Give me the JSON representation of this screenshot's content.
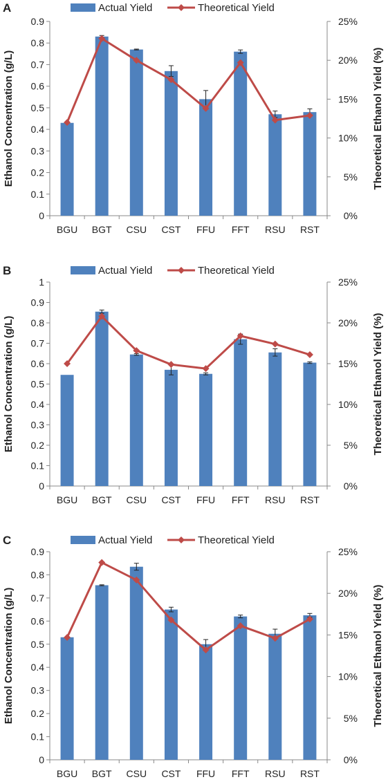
{
  "colors": {
    "bar": "#4f81bd",
    "line": "#be4b48",
    "error": "#222222"
  },
  "chart_data": [
    {
      "type": "bar",
      "panel_label": "A",
      "categories": [
        "BGU",
        "BGT",
        "CSU",
        "CST",
        "FFU",
        "FFT",
        "RSU",
        "RST"
      ],
      "series": [
        {
          "name": "Actual Yield",
          "type": "bar",
          "axis": "left",
          "values": [
            0.43,
            0.83,
            0.77,
            0.67,
            0.54,
            0.76,
            0.47,
            0.48
          ],
          "errors": [
            0.0,
            0.005,
            0.002,
            0.025,
            0.04,
            0.008,
            0.015,
            0.015
          ]
        },
        {
          "name": "Theoretical Yield",
          "type": "line",
          "axis": "right",
          "values": [
            12.0,
            22.8,
            20.0,
            17.5,
            13.8,
            19.7,
            12.3,
            12.9
          ]
        }
      ],
      "ylabel": "Ethanol Concentration (g/L)",
      "y2label": "Theoretical Ethanol Yield (%)",
      "ylim": [
        0,
        0.9
      ],
      "yticks": [
        "0",
        "0.1",
        "0.2",
        "0.3",
        "0.4",
        "0.5",
        "0.6",
        "0.7",
        "0.8",
        "0.9"
      ],
      "y2lim": [
        0,
        25
      ],
      "y2ticks": [
        "0%",
        "5%",
        "10%",
        "15%",
        "20%",
        "25%"
      ],
      "legend": "top",
      "grid": false
    },
    {
      "type": "bar",
      "panel_label": "B",
      "categories": [
        "BGU",
        "BGT",
        "CSU",
        "CST",
        "FFU",
        "FFT",
        "RSU",
        "RST"
      ],
      "series": [
        {
          "name": "Actual Yield",
          "type": "bar",
          "axis": "left",
          "values": [
            0.545,
            0.855,
            0.645,
            0.57,
            0.55,
            0.72,
            0.655,
            0.605
          ],
          "errors": [
            0.0,
            0.008,
            0.004,
            0.025,
            0.005,
            0.025,
            0.018,
            0.004
          ]
        },
        {
          "name": "Theoretical Yield",
          "type": "line",
          "axis": "right",
          "values": [
            15.0,
            20.8,
            16.6,
            14.9,
            14.4,
            18.4,
            17.4,
            16.1
          ]
        }
      ],
      "ylabel": "Ethanol Concentration (g/L)",
      "y2label": "Theoretical Ethanol Yield (%)",
      "ylim": [
        0,
        1
      ],
      "yticks": [
        "0",
        "0.1",
        "0.2",
        "0.3",
        "0.4",
        "0.5",
        "0.6",
        "0.7",
        "0.8",
        "0.9",
        "1"
      ],
      "y2lim": [
        0,
        25
      ],
      "y2ticks": [
        "0%",
        "5%",
        "10%",
        "15%",
        "20%",
        "25%"
      ],
      "legend": "top",
      "grid": false
    },
    {
      "type": "bar",
      "panel_label": "C",
      "categories": [
        "BGU",
        "BGT",
        "CSU",
        "CST",
        "FFU",
        "FFT",
        "RSU",
        "RST"
      ],
      "series": [
        {
          "name": "Actual Yield",
          "type": "bar",
          "axis": "left",
          "values": [
            0.53,
            0.755,
            0.835,
            0.65,
            0.5,
            0.62,
            0.545,
            0.625
          ],
          "errors": [
            0.0,
            0.002,
            0.015,
            0.01,
            0.02,
            0.006,
            0.02,
            0.008
          ]
        },
        {
          "name": "Theoretical Yield",
          "type": "line",
          "axis": "right",
          "values": [
            14.7,
            23.7,
            21.6,
            16.8,
            13.2,
            16.1,
            14.6,
            16.9
          ]
        }
      ],
      "ylabel": "Ethanol Concentration (g/L)",
      "y2label": "Theoretical Ethanol Yield (%)",
      "ylim": [
        0,
        0.9
      ],
      "yticks": [
        "0",
        "0.1",
        "0.2",
        "0.3",
        "0.4",
        "0.5",
        "0.6",
        "0.7",
        "0.8",
        "0.9"
      ],
      "y2lim": [
        0,
        25
      ],
      "y2ticks": [
        "0%",
        "5%",
        "10%",
        "15%",
        "20%",
        "25%"
      ],
      "legend": "top",
      "grid": false
    }
  ]
}
